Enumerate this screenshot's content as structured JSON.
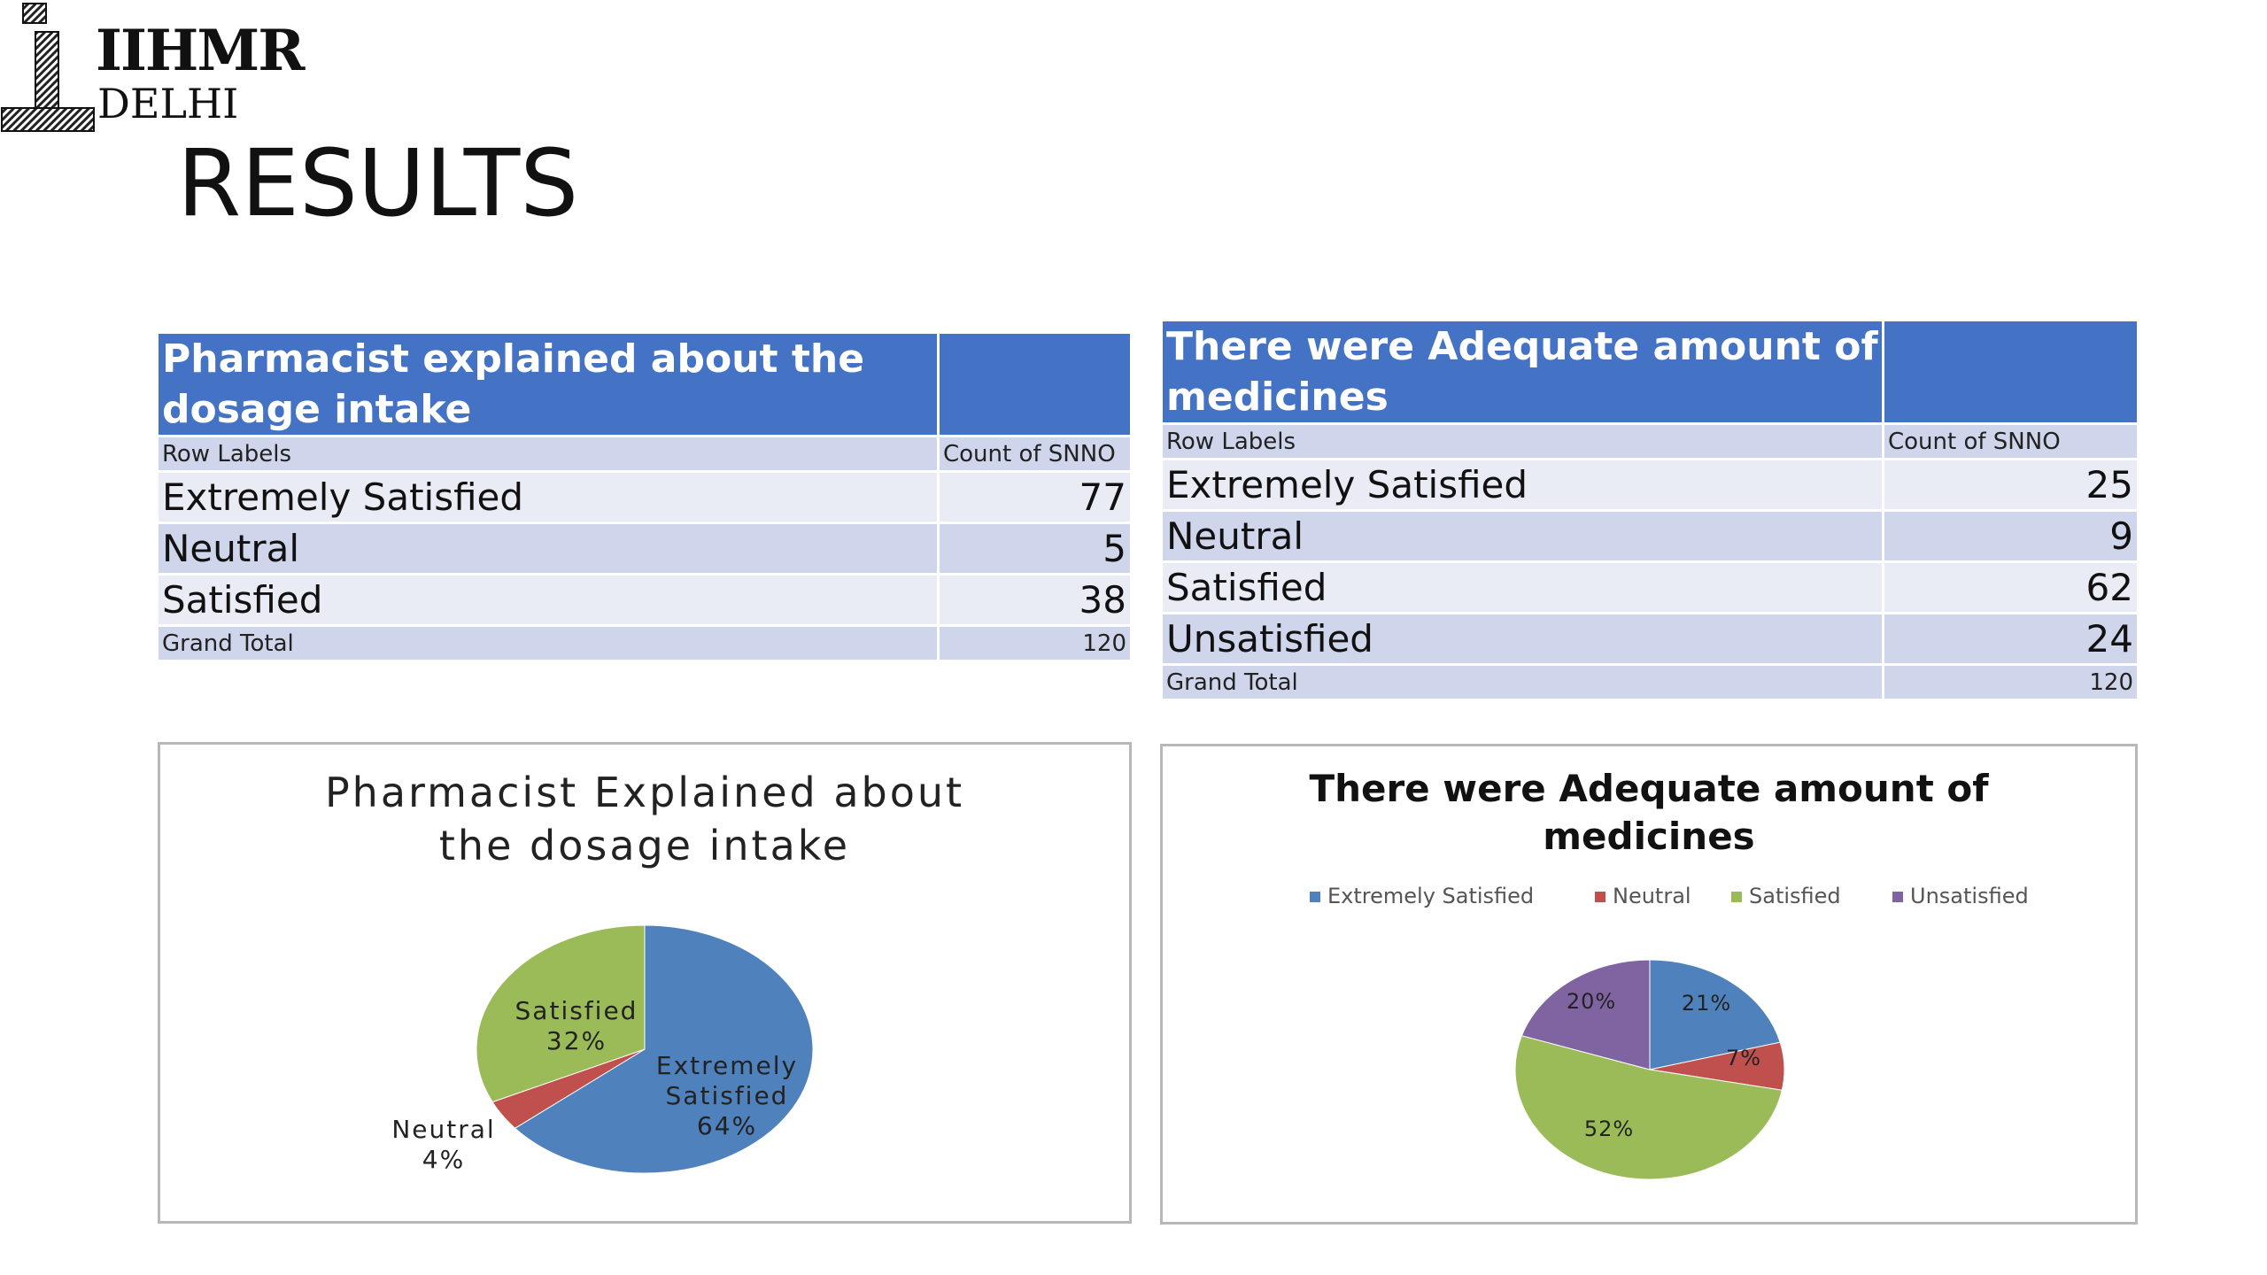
{
  "logo": {
    "line1": "IIHMR",
    "line2": "DELHI",
    "glyph": "iL"
  },
  "page_title": "RESULTS",
  "tables": [
    {
      "header": "Pharmacist  explained  about the dosage intake",
      "row_labels_header": "Row Labels",
      "count_header": "Count of SNNO",
      "rows": [
        {
          "label": "Extremely Satisfied",
          "value": "77"
        },
        {
          "label": "Neutral",
          "value": "5"
        },
        {
          "label": "Satisfied",
          "value": "38"
        }
      ],
      "grand_total_label": "Grand Total",
      "grand_total_value": "120"
    },
    {
      "header": "There were Adequate amount of medicines",
      "row_labels_header": "Row Labels",
      "count_header": "Count of SNNO",
      "rows": [
        {
          "label": "Extremely Satisfied",
          "value": "25"
        },
        {
          "label": "Neutral",
          "value": "9"
        },
        {
          "label": "Satisfied",
          "value": "62"
        },
        {
          "label": "Unsatisfied",
          "value": "24"
        }
      ],
      "grand_total_label": "Grand Total",
      "grand_total_value": "120"
    }
  ],
  "chart_data": [
    {
      "type": "pie",
      "title": "Pharmacist  Explained  about the dosage intake",
      "title_lines": [
        "Pharmacist  Explained  about",
        "the dosage intake"
      ],
      "categories": [
        "Extremely Satisfied",
        "Neutral",
        "Satisfied"
      ],
      "values": [
        64,
        4,
        32
      ],
      "labels": [
        "Extremely Satisfied 64%",
        "Neutral 4%",
        "Satisfied 32%"
      ],
      "colors": [
        "#4f81bd",
        "#c0504d",
        "#9bbb59"
      ],
      "legend": "none"
    },
    {
      "type": "pie",
      "title": "There were Adequate amount of medicines",
      "title_lines": [
        "There were Adequate amount of",
        "medicines"
      ],
      "categories": [
        "Extremely Satisfied",
        "Neutral",
        "Satisfied",
        "Unsatisfied"
      ],
      "values": [
        21,
        7,
        52,
        20
      ],
      "labels": [
        "21%",
        "7%",
        "52%",
        "20%"
      ],
      "colors": [
        "#4f81bd",
        "#c0504d",
        "#9bbb59",
        "#8064a2"
      ],
      "legend": "top"
    }
  ]
}
